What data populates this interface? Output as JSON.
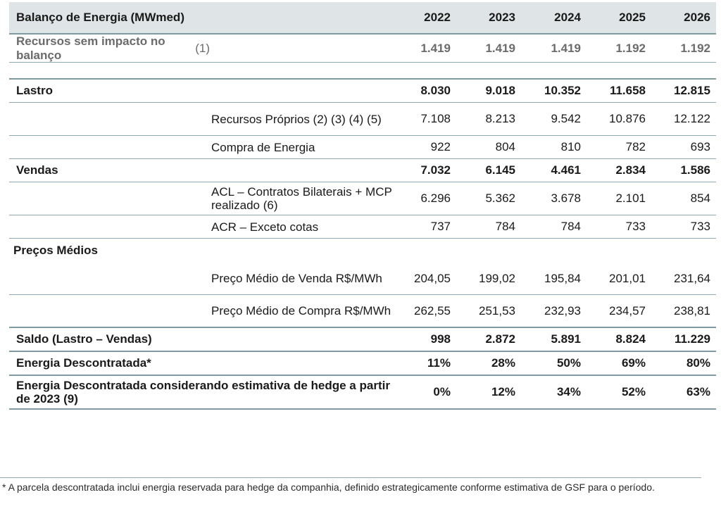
{
  "table": {
    "header": {
      "title": "Balanço de Energia (MWmed)",
      "years": [
        "2022",
        "2023",
        "2024",
        "2025",
        "2026"
      ]
    },
    "recursos": {
      "label": "Recursos sem impacto no balanço",
      "note": "(1)",
      "values": [
        "1.419",
        "1.419",
        "1.419",
        "1.192",
        "1.192"
      ]
    },
    "lastro": {
      "label": "Lastro",
      "values": [
        "8.030",
        "9.018",
        "10.352",
        "11.658",
        "12.815"
      ]
    },
    "recursos_proprios": {
      "label": "Recursos Próprios (2) (3) (4) (5)",
      "values": [
        "7.108",
        "8.213",
        "9.542",
        "10.876",
        "12.122"
      ]
    },
    "compra_energia": {
      "label": "Compra de Energia",
      "values": [
        "922",
        "804",
        "810",
        "782",
        "693"
      ]
    },
    "vendas": {
      "label": "Vendas",
      "values": [
        "7.032",
        "6.145",
        "4.461",
        "2.834",
        "1.586"
      ]
    },
    "acl": {
      "label": "ACL – Contratos Bilaterais + MCP realizado (6)",
      "values": [
        "6.296",
        "5.362",
        "3.678",
        "2.101",
        "854"
      ]
    },
    "acr": {
      "label": "ACR – Exceto cotas",
      "values": [
        "737",
        "784",
        "784",
        "733",
        "733"
      ]
    },
    "precos_medios": {
      "label": "Preços Médios"
    },
    "preco_venda": {
      "label": "Preço Médio de Venda R$/MWh",
      "values": [
        "204,05",
        "199,02",
        "195,84",
        "201,01",
        "231,64"
      ]
    },
    "preco_compra": {
      "label": "Preço Médio de Compra R$/MWh",
      "values": [
        "262,55",
        "251,53",
        "232,93",
        "234,57",
        "238,81"
      ]
    },
    "saldo": {
      "label": "Saldo (Lastro – Vendas)",
      "values": [
        "998",
        "2.872",
        "5.891",
        "8.824",
        "11.229"
      ]
    },
    "descontratada": {
      "label": "Energia Descontratada*",
      "values": [
        "11%",
        "28%",
        "50%",
        "69%",
        "80%"
      ]
    },
    "descontratada_hedge": {
      "label": "Energia Descontratada considerando estimativa de hedge a partir de 2023 (9)",
      "values": [
        "0%",
        "12%",
        "34%",
        "52%",
        "63%"
      ]
    }
  },
  "footnote": "* A parcela descontratada inclui energia reservada para hedge da companhia, definido estrategicamente conforme estimativa de GSF para o período."
}
